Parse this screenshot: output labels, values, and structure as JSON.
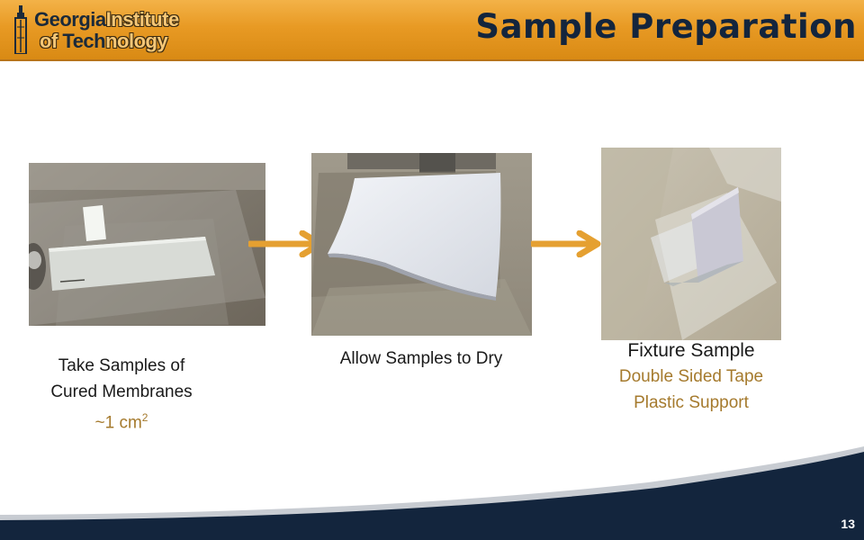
{
  "header": {
    "logo": {
      "line1_strong": "Georgia",
      "line1_light": "Institute",
      "line2_light_prefix": "of ",
      "line2_strong": "Tech",
      "line2_light": "nology"
    },
    "title": "Sample Preparation"
  },
  "steps": [
    {
      "caption_line1": "Take Samples of",
      "caption_line2": "Cured Membranes",
      "detail_prefix": "~1 cm",
      "detail_sup": "2"
    },
    {
      "caption_line1": "Allow Samples to Dry"
    },
    {
      "caption_line1": "Fixture Sample",
      "detail_line1": "Double Sided Tape",
      "detail_line2": "Plastic Support"
    }
  ],
  "footer": {
    "page_number": "13"
  },
  "colors": {
    "header_gold": "#e89a24",
    "title_navy": "#13253d",
    "accent_gold_text": "#a57a2d",
    "footer_navy": "#13253d"
  }
}
